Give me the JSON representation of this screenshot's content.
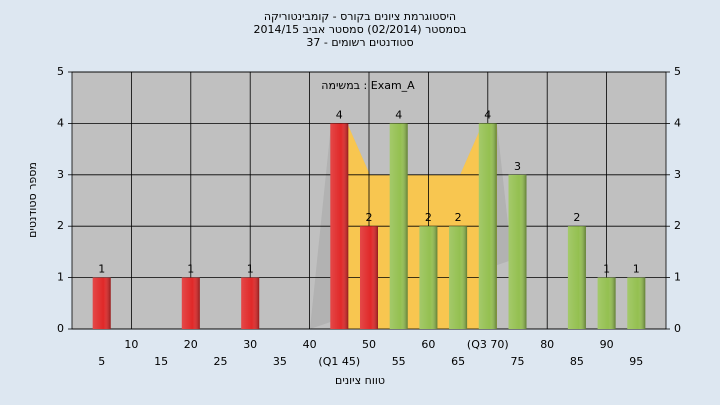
{
  "chart_data": {
    "type": "bar",
    "title": "היסטוגרמת ציונים בקורס - קומבינטוריקה",
    "subtitle": "בסמסטר  (02/2014)  סמסטר אביב 2014/15",
    "subtitle2": "סטודנטים רשומים - 37",
    "annotation": "במשימה : Exam_A",
    "x_label": "טווח ציונים",
    "y_label": "מספר סטודנטים",
    "categories": [
      "5",
      "10",
      "15",
      "20",
      "25",
      "30",
      "35",
      "40",
      "(Q1 45)",
      "50",
      "55",
      "60",
      "65",
      "(Q3 70)",
      "75",
      "80",
      "85",
      "90",
      "95"
    ],
    "values": [
      1,
      null,
      null,
      1,
      null,
      1,
      null,
      null,
      4,
      2,
      4,
      2,
      2,
      4,
      3,
      null,
      2,
      1,
      1
    ],
    "colors": [
      "#e02828",
      null,
      null,
      "#e02828",
      null,
      "#e02828",
      null,
      null,
      "#e02828",
      "#e02828",
      "#94c050",
      "#94c050",
      "#94c050",
      "#94c050",
      "#94c050",
      null,
      "#94c050",
      "#94c050",
      "#94c050"
    ],
    "ylim": [
      0,
      5
    ],
    "yticks": [
      0,
      1,
      2,
      3,
      4,
      5
    ],
    "grid": true
  }
}
